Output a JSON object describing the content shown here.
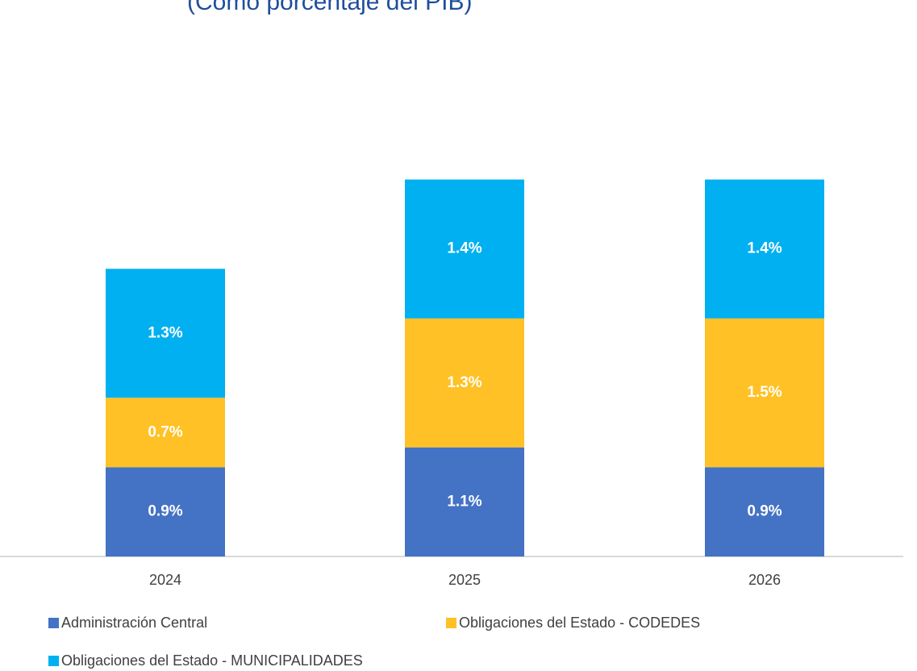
{
  "chart_data": {
    "type": "stacked_bar",
    "subtitle": "(Como porcentaje del PIB)",
    "categories": [
      "2024",
      "2025",
      "2026"
    ],
    "series": [
      {
        "name": "Administración Central",
        "color": "#4472c4",
        "values": [
          0.9,
          1.1,
          0.9
        ],
        "value_labels": [
          "0.9%",
          "1.1%",
          "0.9%"
        ]
      },
      {
        "name": "Obligaciones del Estado - CODEDES",
        "color": "#ffc125",
        "values": [
          0.7,
          1.3,
          1.5
        ],
        "value_labels": [
          "0.7%",
          "1.3%",
          "1.5%"
        ]
      },
      {
        "name": "Obligaciones del Estado - MUNICIPALIDADES",
        "color": "#00b0f0",
        "values": [
          1.3,
          1.4,
          1.4
        ],
        "value_labels": [
          "1.3%",
          "1.4%",
          "1.4%"
        ]
      }
    ]
  }
}
